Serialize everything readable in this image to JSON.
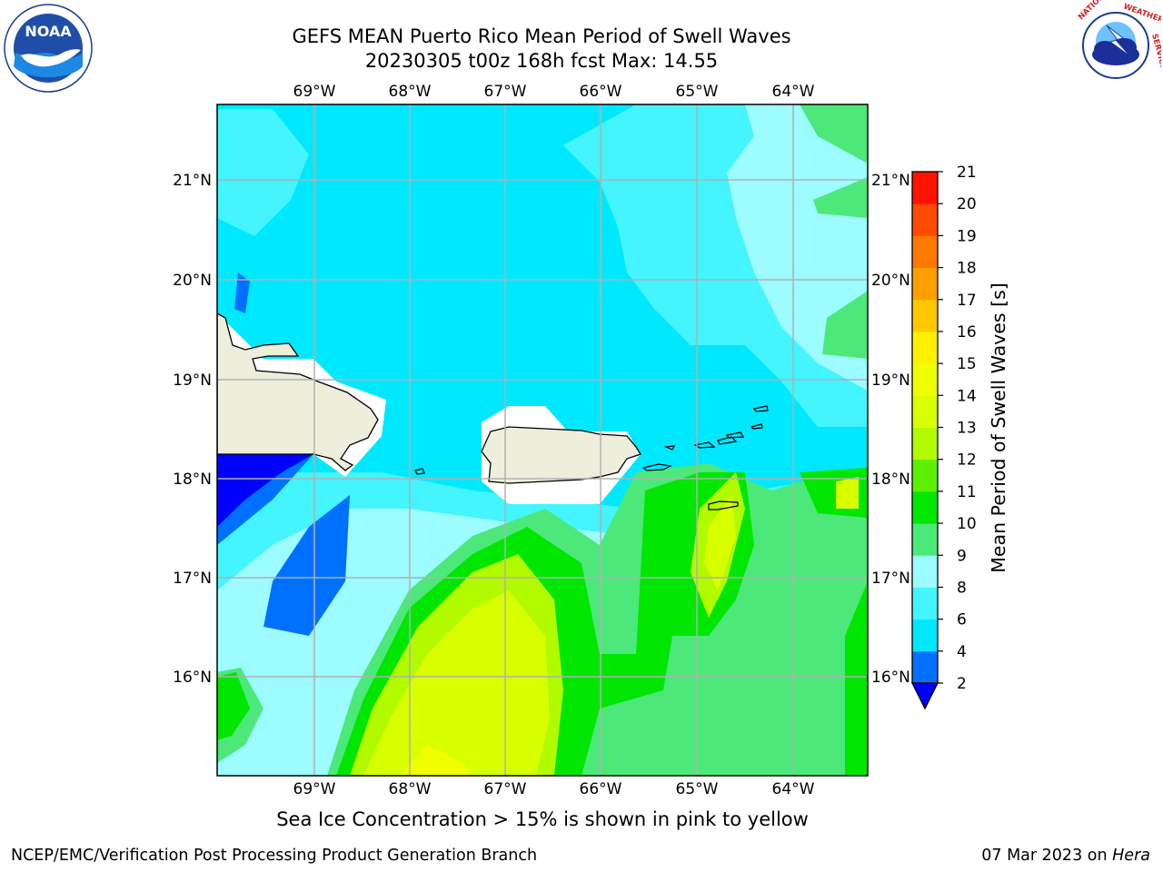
{
  "title": {
    "line1": "GEFS MEAN Puerto Rico Mean Period of Swell Waves",
    "line2": "20230305 t00z 168h fcst   Max: 14.55"
  },
  "map": {
    "lon_ticks": [
      "69°W",
      "68°W",
      "67°W",
      "66°W",
      "65°W",
      "64°W"
    ],
    "lat_ticks": [
      "21°N",
      "20°N",
      "19°N",
      "18°N",
      "17°N",
      "16°N"
    ],
    "land_color": "#eeeedc",
    "grid_color": "#b0b0b0"
  },
  "colorbar": {
    "label": "Mean Period of Swell Waves [s]",
    "levels": [
      "2",
      "4",
      "6",
      "8",
      "9",
      "10",
      "11",
      "12",
      "13",
      "14",
      "15",
      "16",
      "17",
      "18",
      "19",
      "20",
      "21"
    ],
    "colors": [
      "#0070ff",
      "#00e8ff",
      "#44f4ff",
      "#9cfcff",
      "#4ce87a",
      "#00e600",
      "#5cf000",
      "#b2fa00",
      "#d8ff00",
      "#f0ff00",
      "#fff000",
      "#ffc800",
      "#ffa000",
      "#ff7800",
      "#ff4a00",
      "#ff1400"
    ],
    "under_color": "#0000ff"
  },
  "caption": "Sea Ice Concentration > 15% is shown in pink to yellow",
  "footer": {
    "left": "NCEP/EMC/Verification Post Processing Product Generation Branch",
    "date": "07 Mar 2023 on",
    "machine": "Hera"
  },
  "logos": {
    "noaa": "NOAA",
    "nws": "NATIONAL WEATHER SERVICE"
  }
}
